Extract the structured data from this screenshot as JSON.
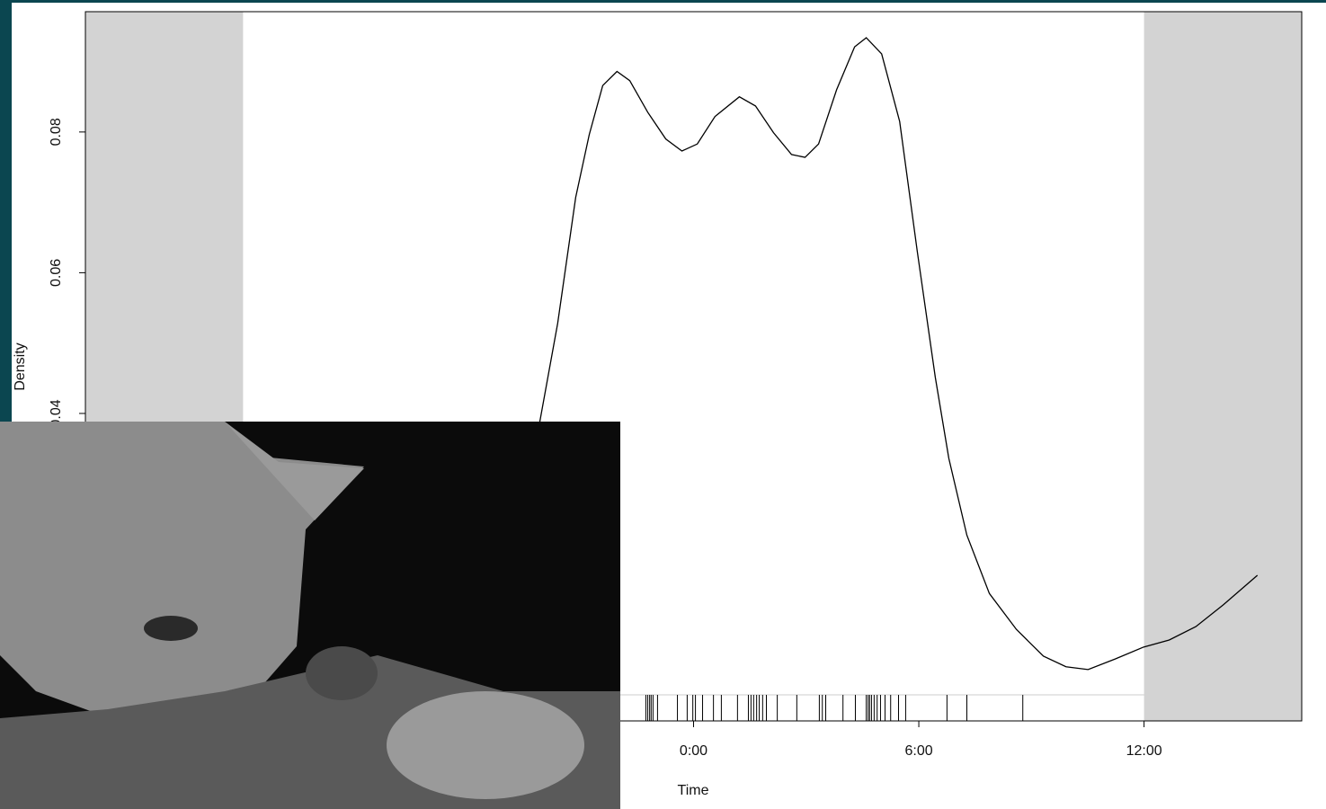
{
  "chart_data": {
    "type": "line",
    "ylabel": "Density",
    "xlabel": "Time",
    "x": [
      -4.1,
      -3.62,
      -3.14,
      -2.78,
      -2.42,
      -2.04,
      -1.7,
      -1.22,
      -0.74,
      -0.31,
      0.1,
      0.57,
      1.22,
      1.65,
      2.13,
      2.61,
      2.97,
      3.33,
      3.81,
      4.29,
      4.6,
      5.01,
      5.49,
      5.96,
      6.44,
      6.8,
      7.28,
      7.88,
      8.6,
      9.32,
      9.92,
      10.51,
      11.23,
      11.99,
      12.67,
      13.38,
      14.11,
      15.02
    ],
    "values": [
      0.0387,
      0.0528,
      0.0707,
      0.0796,
      0.0866,
      0.0886,
      0.0873,
      0.0828,
      0.079,
      0.0773,
      0.0783,
      0.0822,
      0.085,
      0.0837,
      0.0799,
      0.0768,
      0.0764,
      0.0783,
      0.086,
      0.0921,
      0.0934,
      0.0911,
      0.0815,
      0.063,
      0.0451,
      0.0336,
      0.0227,
      0.0144,
      0.0093,
      0.0055,
      0.004,
      0.0036,
      0.0051,
      0.0068,
      0.0078,
      0.0097,
      0.0128,
      0.017
    ],
    "color": "#000000",
    "xlim": [
      -16.2,
      16.2
    ],
    "ylim": [
      -0.0037,
      0.0971
    ],
    "xticks": [
      {
        "value": 0,
        "label": "0:00"
      },
      {
        "value": 6,
        "label": "6:00"
      },
      {
        "value": 12,
        "label": "12:00"
      }
    ],
    "yticks": [
      0.04,
      0.06,
      0.08
    ],
    "rug": [
      -1.27,
      -1.22,
      -1.17,
      -1.13,
      -1.08,
      -0.96,
      -0.43,
      -0.17,
      -0.02,
      0.05,
      0.24,
      0.53,
      0.74,
      1.17,
      1.46,
      1.53,
      1.6,
      1.68,
      1.75,
      1.84,
      1.94,
      2.23,
      2.75,
      3.35,
      3.43,
      3.52,
      3.98,
      4.31,
      4.6,
      4.65,
      4.69,
      4.74,
      4.81,
      4.89,
      4.98,
      5.1,
      5.25,
      5.46,
      5.65,
      6.75,
      7.28,
      8.77
    ],
    "night_shading": [
      [
        -16.2,
        -12
      ],
      [
        12,
        16.2
      ]
    ],
    "shading_color": "#d3d3d3"
  }
}
